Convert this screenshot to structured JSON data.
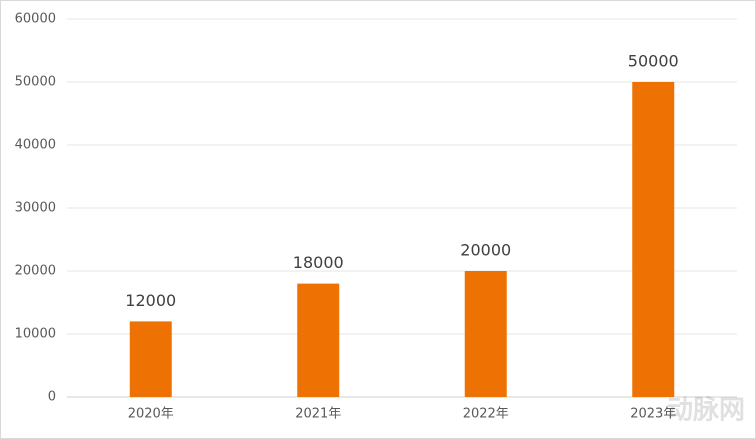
{
  "chart_data": {
    "type": "bar",
    "categories": [
      "2020年",
      "2021年",
      "2022年",
      "2023年"
    ],
    "values": [
      12000,
      18000,
      20000,
      50000
    ],
    "color": "#ee7203",
    "ylim": [
      0,
      60000
    ],
    "yticks": [
      0,
      10000,
      20000,
      30000,
      40000,
      50000,
      60000
    ],
    "grid": true,
    "data_labels": true,
    "watermark": "动脉网"
  }
}
